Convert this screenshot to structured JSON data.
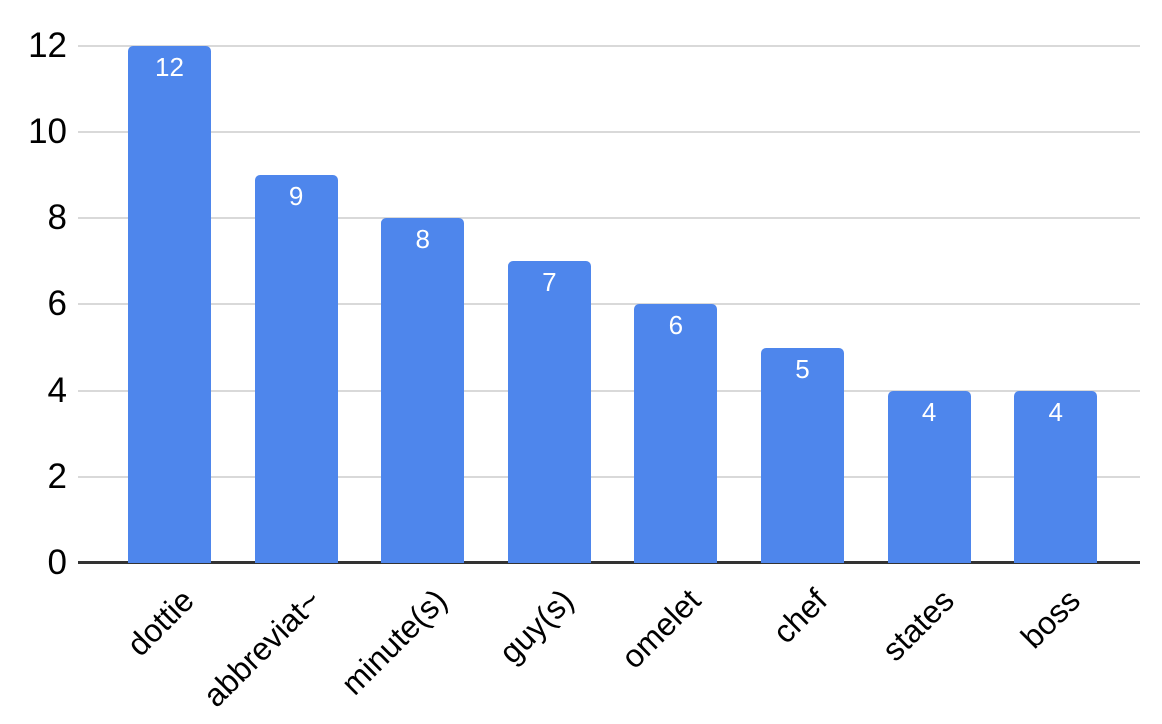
{
  "chart_data": {
    "type": "bar",
    "title": "",
    "xlabel": "",
    "ylabel": "",
    "categories": [
      "dottie",
      "abbreviat~",
      "minute(s)",
      "guy(s)",
      "omelet",
      "chef",
      "states",
      "boss"
    ],
    "values": [
      12,
      9,
      8,
      7,
      6,
      5,
      4,
      4
    ],
    "ylim": [
      0,
      12
    ],
    "yticks": [
      0,
      2,
      4,
      6,
      8,
      10,
      12
    ],
    "grid": true,
    "legend_position": "none",
    "x_label_rotation_deg": 45,
    "bar_value_labels_visible": true,
    "colors": {
      "bar": "#4e86ec",
      "bar_value_label": "#ffffff",
      "gridline": "#d9d9d9",
      "baseline": "#333333",
      "axis_text": "#000000",
      "background": "#ffffff"
    }
  }
}
